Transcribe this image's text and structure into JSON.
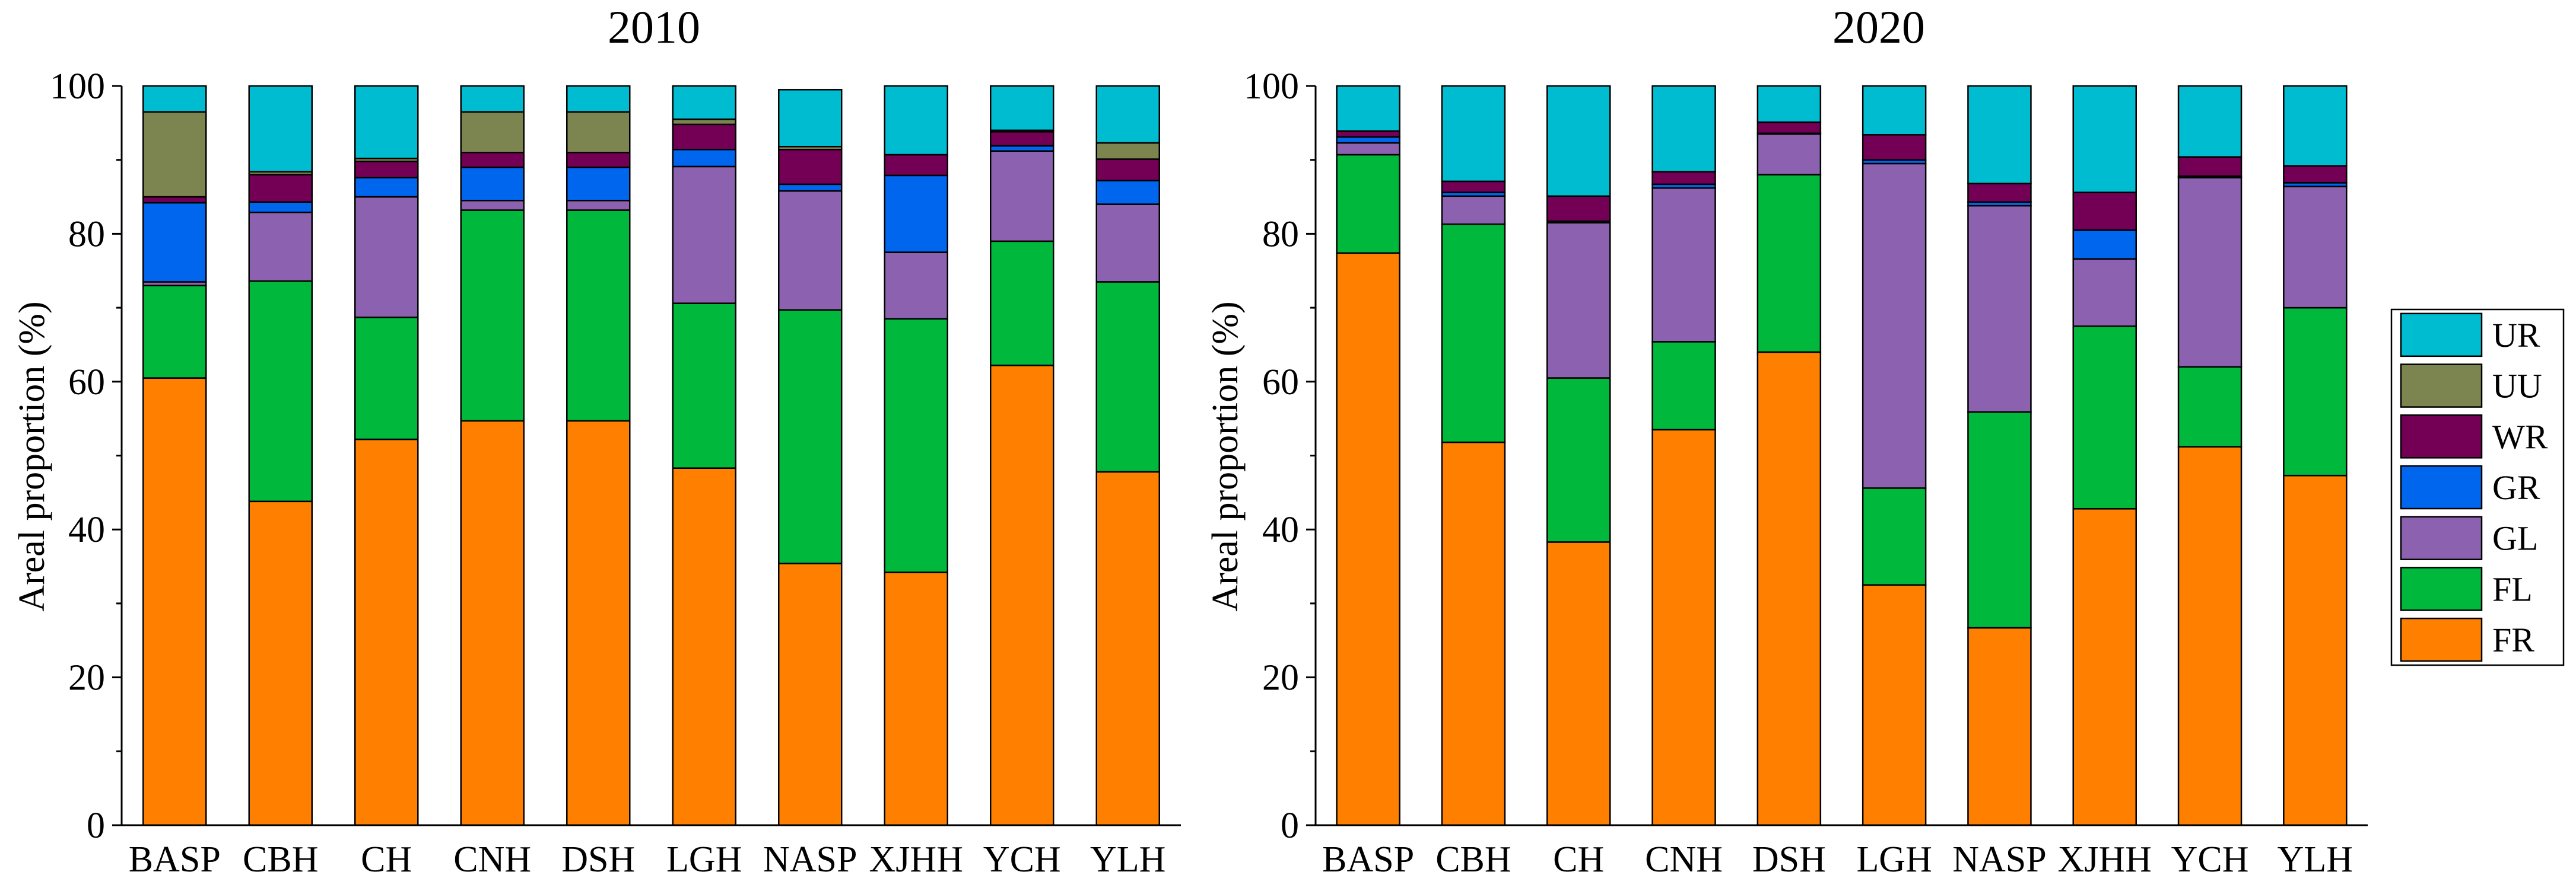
{
  "chart_data": [
    {
      "type": "bar",
      "stacked": true,
      "title": "2010",
      "xlabel": "",
      "ylabel": "Areal proportion (%)",
      "ylim": [
        0,
        100
      ],
      "yticks": [
        0,
        20,
        40,
        60,
        80,
        100
      ],
      "categories": [
        "BASP",
        "CBH",
        "CH",
        "CNH",
        "DSH",
        "LGH",
        "NASP",
        "XJHH",
        "YCH",
        "YLH"
      ],
      "series": [
        {
          "name": "FR",
          "values": [
            60.5,
            43.8,
            52.2,
            54.7,
            54.7,
            48.3,
            35.4,
            34.2,
            62.2,
            47.8
          ]
        },
        {
          "name": "FL",
          "values": [
            12.5,
            29.8,
            16.5,
            28.5,
            28.5,
            22.3,
            34.3,
            34.3,
            16.8,
            25.7
          ]
        },
        {
          "name": "GL",
          "values": [
            0.5,
            9.3,
            16.3,
            1.3,
            1.3,
            18.5,
            16.1,
            9.0,
            12.2,
            10.5
          ]
        },
        {
          "name": "GR",
          "values": [
            10.7,
            1.4,
            2.6,
            4.5,
            4.5,
            2.3,
            0.9,
            10.4,
            0.7,
            3.2
          ]
        },
        {
          "name": "WR",
          "values": [
            0.8,
            3.7,
            2.2,
            2.0,
            2.0,
            3.4,
            4.7,
            2.8,
            1.9,
            2.9
          ]
        },
        {
          "name": "UU",
          "values": [
            11.5,
            0.4,
            0.4,
            5.5,
            5.5,
            0.7,
            0.4,
            0.0,
            0.2,
            2.2
          ]
        },
        {
          "name": "UR",
          "values": [
            3.5,
            11.6,
            9.8,
            3.5,
            3.5,
            4.5,
            7.7,
            9.3,
            6.0,
            7.7
          ]
        }
      ]
    },
    {
      "type": "bar",
      "stacked": true,
      "title": "2020",
      "xlabel": "",
      "ylabel": "Areal proportion (%)",
      "ylim": [
        0,
        100
      ],
      "yticks": [
        0,
        20,
        40,
        60,
        80,
        100
      ],
      "categories": [
        "BASP",
        "CBH",
        "CH",
        "CNH",
        "DSH",
        "LGH",
        "NASP",
        "XJHH",
        "YCH",
        "YLH"
      ],
      "series": [
        {
          "name": "FR",
          "values": [
            77.4,
            51.8,
            38.3,
            53.5,
            64.0,
            32.5,
            26.7,
            42.8,
            51.2,
            47.3
          ]
        },
        {
          "name": "FL",
          "values": [
            13.3,
            29.5,
            22.2,
            11.9,
            24.0,
            13.1,
            29.2,
            24.7,
            10.8,
            22.7
          ]
        },
        {
          "name": "GL",
          "values": [
            1.6,
            3.8,
            21.0,
            20.8,
            5.5,
            43.9,
            27.9,
            9.1,
            25.6,
            16.4
          ]
        },
        {
          "name": "GR",
          "values": [
            0.8,
            0.5,
            0.2,
            0.5,
            0.1,
            0.5,
            0.5,
            3.9,
            0.2,
            0.5
          ]
        },
        {
          "name": "WR",
          "values": [
            0.8,
            1.5,
            3.4,
            1.7,
            1.5,
            3.4,
            2.5,
            5.1,
            2.6,
            2.3
          ]
        },
        {
          "name": "UU",
          "values": [
            0.0,
            0.0,
            0.0,
            0.0,
            0.0,
            0.0,
            0.0,
            0.0,
            0.0,
            0.0
          ]
        },
        {
          "name": "UR",
          "values": [
            6.1,
            12.9,
            14.9,
            11.6,
            4.9,
            6.6,
            13.2,
            14.4,
            9.6,
            10.8
          ]
        }
      ]
    }
  ],
  "legend": {
    "placement": "right",
    "items": [
      "UR",
      "UU",
      "WR",
      "GR",
      "GL",
      "FL",
      "FR"
    ]
  },
  "colors": {
    "FR": "#ff8000",
    "FL": "#00b83c",
    "GL": "#8c62b0",
    "GR": "#0066ee",
    "WR": "#730055",
    "UU": "#7c8550",
    "UR": "#00bcd0"
  }
}
